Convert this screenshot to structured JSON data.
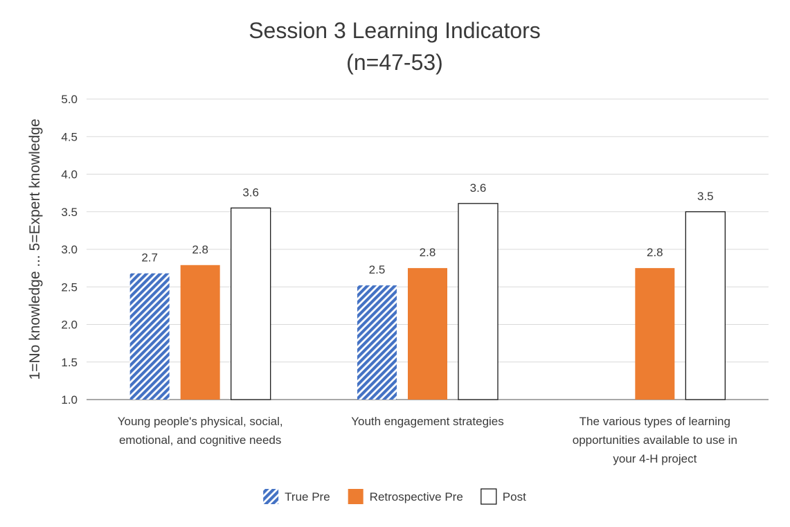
{
  "chart_data": {
    "type": "bar",
    "title": "Session 3 Learning Indicators",
    "subtitle": "(n=47-53)",
    "ylabel": "1=No knowledge ... 5=Expert knowledge",
    "xlabel": "",
    "ylim": [
      1.0,
      5.0
    ],
    "ytick_step": 0.5,
    "y_ticks": [
      "1.0",
      "1.5",
      "2.0",
      "2.5",
      "3.0",
      "3.5",
      "4.0",
      "4.5",
      "5.0"
    ],
    "grid": true,
    "legend_position": "bottom",
    "categories": [
      [
        "Young people's physical, social,",
        "emotional, and cognitive needs"
      ],
      [
        "Youth engagement strategies"
      ],
      [
        "The various types of learning",
        "opportunities available to use in",
        "your 4-H project"
      ]
    ],
    "series": [
      {
        "name": "True Pre",
        "values": [
          2.68,
          2.52,
          null
        ],
        "labels": [
          "2.7",
          "2.5",
          null
        ],
        "style": "hatch",
        "color": "#4472C4"
      },
      {
        "name": "Retrospective Pre",
        "values": [
          2.79,
          2.75,
          2.75
        ],
        "labels": [
          "2.8",
          "2.8",
          "2.8"
        ],
        "style": "solid",
        "color": "#ED7D31"
      },
      {
        "name": "Post",
        "values": [
          3.55,
          3.61,
          3.5
        ],
        "labels": [
          "3.6",
          "3.6",
          "3.5"
        ],
        "style": "outline",
        "color": "#FFFFFF"
      }
    ]
  }
}
